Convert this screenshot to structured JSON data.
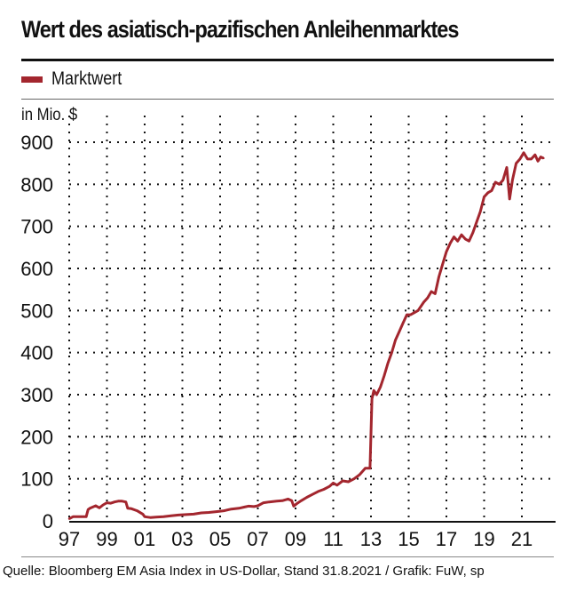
{
  "header": {
    "title": "Wert des asiatisch-pazifischen Anleihenmarktes",
    "unit_label": "in Mio. $"
  },
  "footer": {
    "source": "Quelle: Bloomberg EM Asia Index in US-Dollar, Stand 31.8.2021 / Grafik: FuW, sp"
  },
  "colors": {
    "series": "#a3262e",
    "grid": "#111111",
    "axis": "#111111"
  },
  "chart_data": {
    "type": "line",
    "title": "Wert des asiatisch-pazifischen Anleihenmarktes",
    "xlabel": "",
    "ylabel": "in Mio. $",
    "ylim": [
      0,
      900
    ],
    "xlim": [
      1997,
      2022.5
    ],
    "yticks": [
      0,
      100,
      200,
      300,
      400,
      500,
      600,
      700,
      800,
      900
    ],
    "ytick_labels": [
      "0",
      "100",
      "200",
      "300",
      "400",
      "500",
      "600",
      "700",
      "800",
      "900"
    ],
    "xticks": [
      1997,
      1999,
      2001,
      2003,
      2005,
      2007,
      2009,
      2011,
      2013,
      2015,
      2017,
      2019,
      2021
    ],
    "xtick_labels": [
      "97",
      "99",
      "01",
      "03",
      "05",
      "07",
      "09",
      "11",
      "13",
      "15",
      "17",
      "19",
      "21"
    ],
    "grid": true,
    "legend": {
      "position": "top-left",
      "entries": [
        "Marktwert"
      ]
    },
    "series": [
      {
        "name": "Marktwert",
        "x": [
          1997.0,
          1997.2,
          1997.9,
          1998.0,
          1998.1,
          1998.4,
          1998.6,
          1998.8,
          1999.0,
          1999.2,
          1999.4,
          1999.6,
          1999.8,
          2000.0,
          2000.1,
          2000.3,
          2000.6,
          2000.9,
          2001.0,
          2001.3,
          2001.6,
          2002.0,
          2002.4,
          2002.8,
          2003.2,
          2003.6,
          2004.0,
          2004.4,
          2004.8,
          2005.2,
          2005.6,
          2006.0,
          2006.3,
          2006.5,
          2006.8,
          2007.0,
          2007.3,
          2007.6,
          2008.0,
          2008.3,
          2008.6,
          2008.8,
          2008.9,
          2009.1,
          2009.3,
          2009.6,
          2009.9,
          2010.2,
          2010.5,
          2010.8,
          2011.0,
          2011.2,
          2011.5,
          2011.8,
          2012.1,
          2012.4,
          2012.7,
          2012.95,
          2013.05,
          2013.15,
          2013.3,
          2013.5,
          2013.7,
          2013.9,
          2014.1,
          2014.3,
          2014.5,
          2014.7,
          2014.9,
          2015.1,
          2015.3,
          2015.5,
          2015.8,
          2016.0,
          2016.2,
          2016.4,
          2016.6,
          2016.8,
          2017.0,
          2017.2,
          2017.4,
          2017.6,
          2017.8,
          2018.0,
          2018.2,
          2018.4,
          2018.6,
          2018.8,
          2019.0,
          2019.2,
          2019.4,
          2019.6,
          2019.8,
          2020.0,
          2020.2,
          2020.35,
          2020.5,
          2020.7,
          2020.9,
          2021.1,
          2021.3,
          2021.5,
          2021.7,
          2021.85,
          2022.0,
          2022.15
        ],
        "y": [
          5,
          10,
          10,
          27,
          30,
          36,
          31,
          38,
          43,
          42,
          45,
          47,
          47,
          45,
          30,
          29,
          24,
          16,
          10,
          8,
          9,
          10,
          12,
          14,
          15,
          16,
          19,
          20,
          22,
          24,
          28,
          30,
          33,
          35,
          34,
          36,
          43,
          45,
          47,
          48,
          52,
          48,
          35,
          42,
          48,
          56,
          63,
          70,
          75,
          82,
          90,
          85,
          95,
          93,
          100,
          110,
          125,
          125,
          290,
          310,
          300,
          318,
          345,
          375,
          400,
          430,
          450,
          470,
          490,
          490,
          495,
          500,
          520,
          530,
          545,
          540,
          580,
          610,
          640,
          660,
          675,
          665,
          680,
          670,
          665,
          685,
          710,
          735,
          770,
          780,
          785,
          805,
          800,
          810,
          840,
          765,
          810,
          850,
          860,
          875,
          860,
          860,
          870,
          855,
          865,
          862
        ]
      }
    ]
  }
}
